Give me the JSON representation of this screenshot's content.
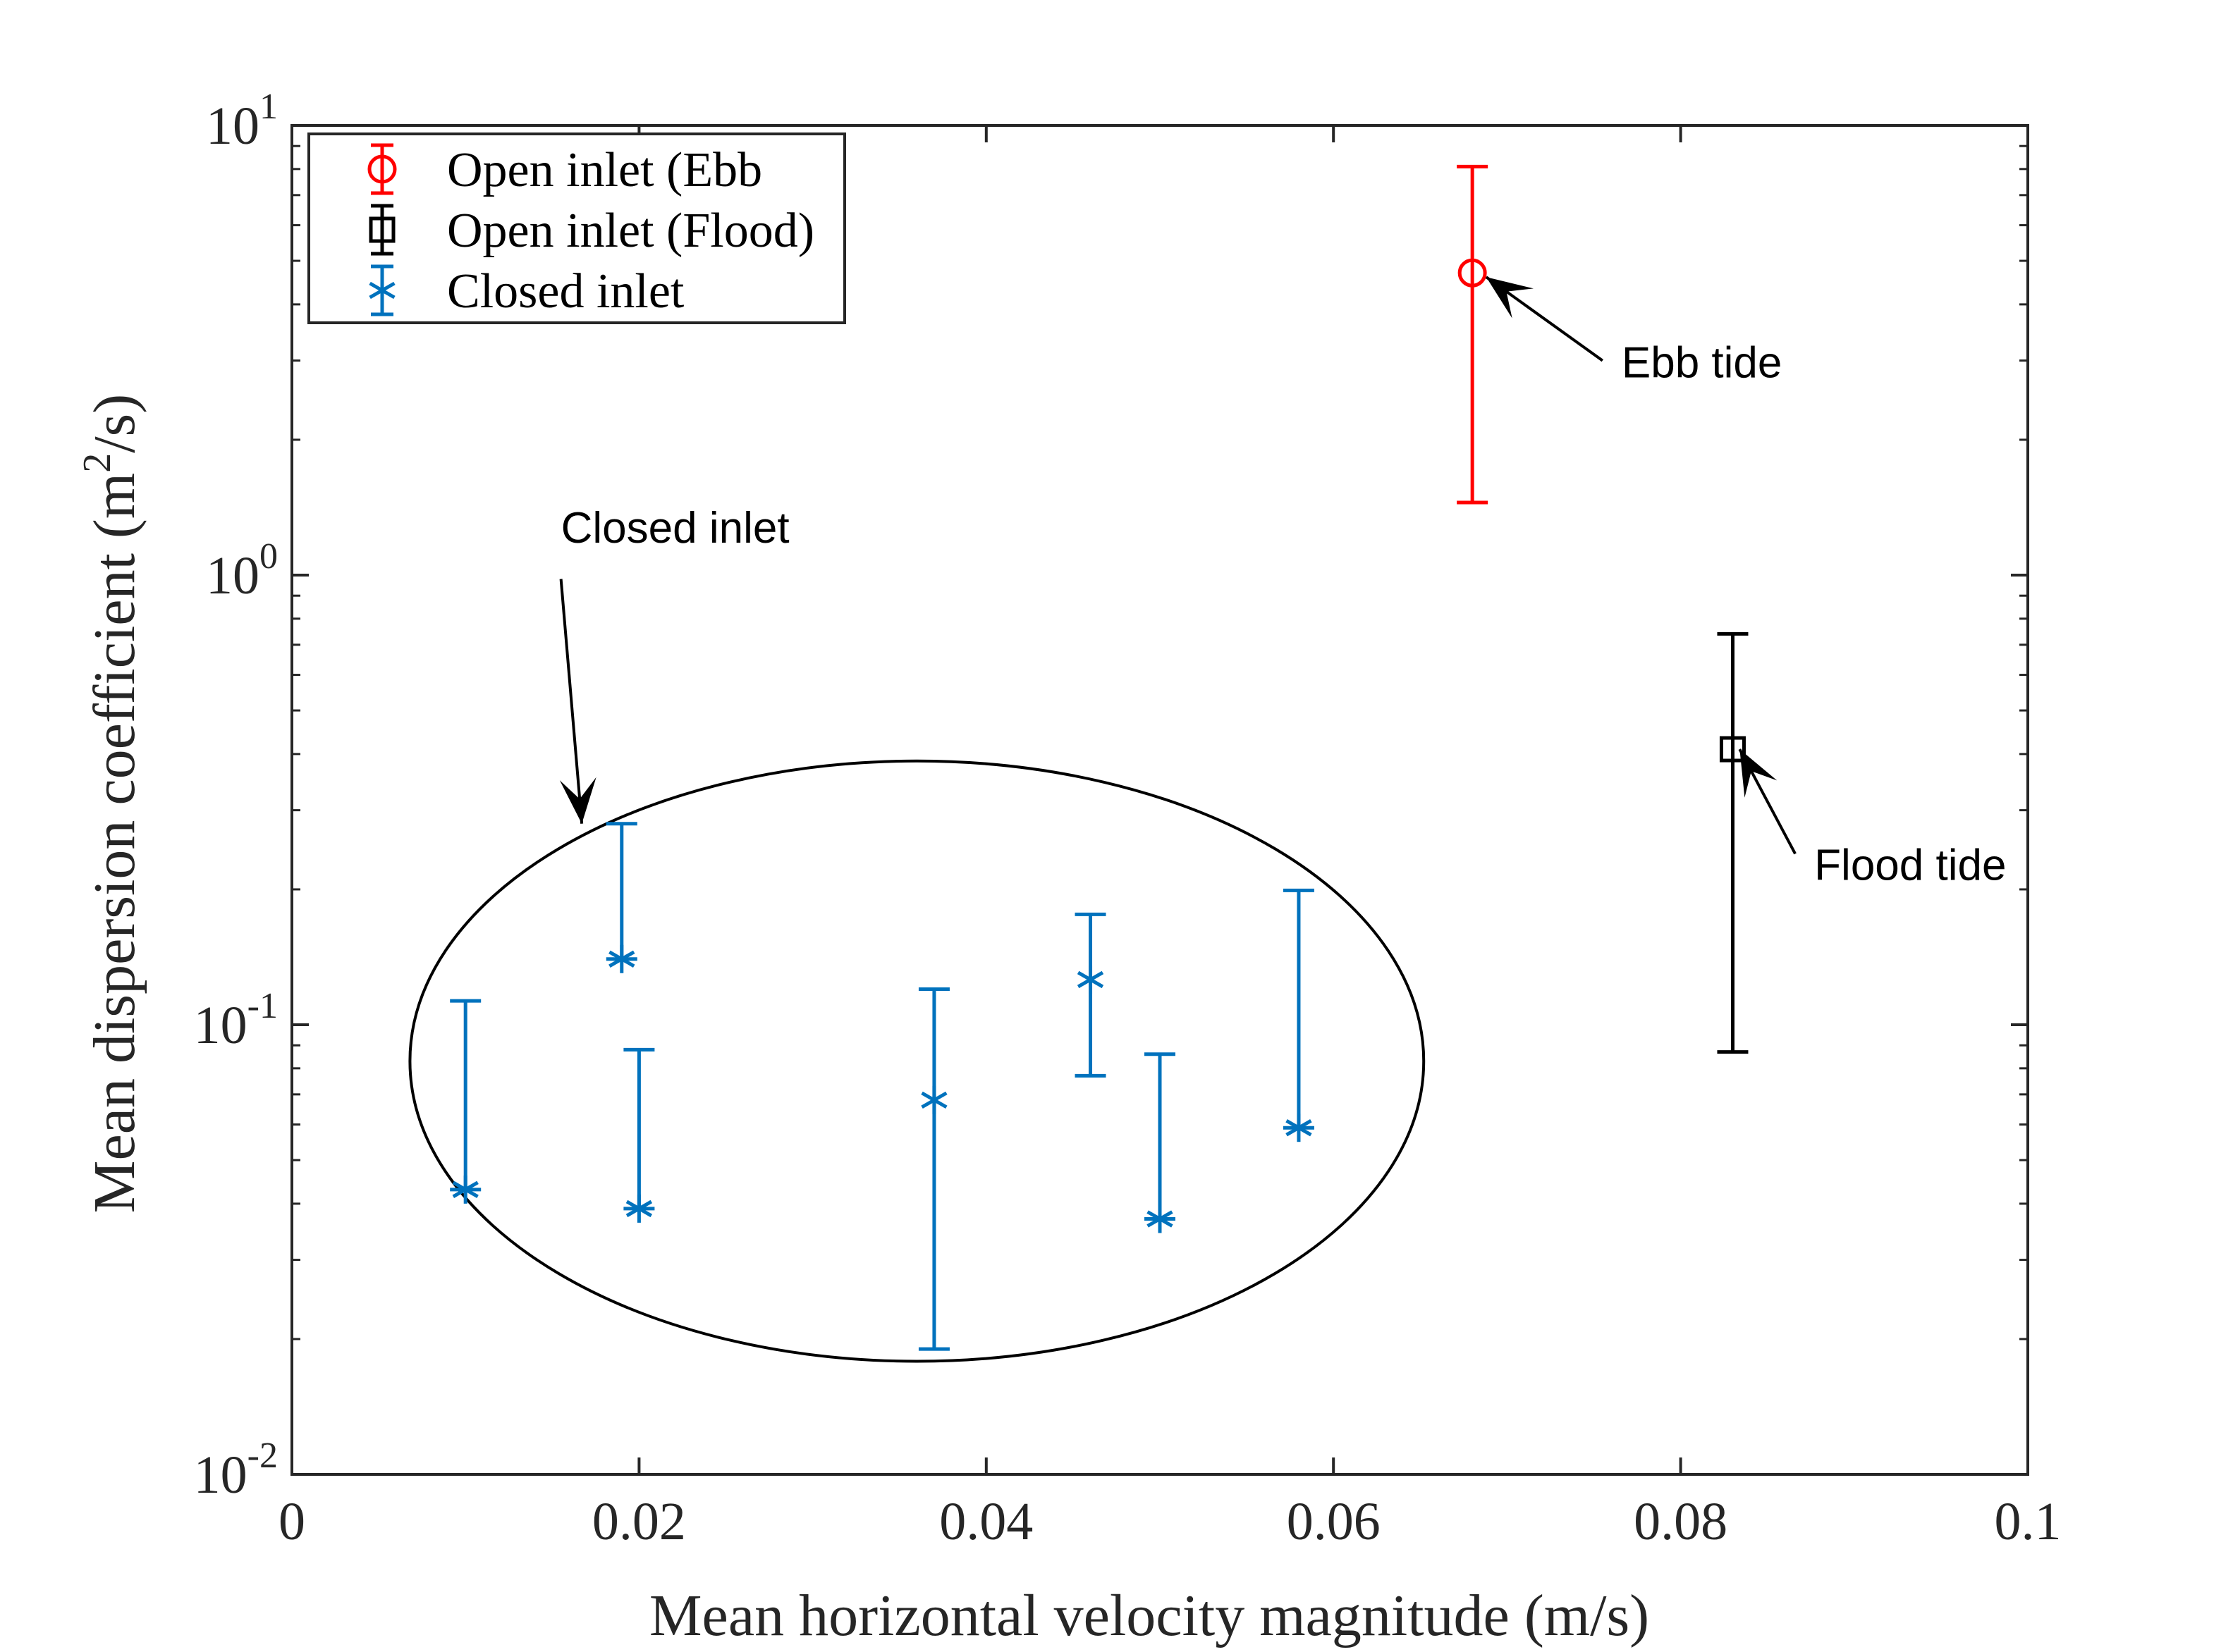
{
  "chart_data": {
    "type": "scatter",
    "title": "",
    "xlabel": "Mean horizontal velocity magnitude (m/s)",
    "ylabel": {
      "prefix": "Mean dispersion coefficient (m",
      "sup": "2",
      "suffix": "/s)"
    },
    "xlim": [
      0,
      0.1
    ],
    "ylim": [
      0.01,
      10
    ],
    "yscale": "log",
    "xticks": [
      "0",
      "0.02",
      "0.04",
      "0.06",
      "0.08",
      "0.1"
    ],
    "xtick_values": [
      0,
      0.02,
      0.04,
      0.06,
      0.08,
      0.1
    ],
    "yticks": [
      {
        "value": 0.01,
        "base": "10",
        "exp": "-2"
      },
      {
        "value": 0.1,
        "base": "10",
        "exp": "-1"
      },
      {
        "value": 1,
        "base": "10",
        "exp": "0"
      },
      {
        "value": 10,
        "base": "10",
        "exp": "1"
      }
    ],
    "legend_position": "top-left",
    "series": [
      {
        "name": "Open inlet (Ebb",
        "color": "#ff0000",
        "marker": "circle",
        "points": [
          {
            "x": 0.068,
            "y": 4.7,
            "ylow": 1.45,
            "yhigh": 8.1
          }
        ]
      },
      {
        "name": "Open inlet (Flood)",
        "color": "#000000",
        "marker": "square",
        "points": [
          {
            "x": 0.083,
            "y": 0.41,
            "ylow": 0.087,
            "yhigh": 0.74
          }
        ]
      },
      {
        "name": "Closed inlet",
        "color": "#0072bd",
        "marker": "asterisk",
        "points": [
          {
            "x": 0.01,
            "y": 0.043,
            "ylow": 0.043,
            "yhigh": 0.113
          },
          {
            "x": 0.019,
            "y": 0.14,
            "ylow": 0.14,
            "yhigh": 0.28
          },
          {
            "x": 0.02,
            "y": 0.039,
            "ylow": 0.039,
            "yhigh": 0.088
          },
          {
            "x": 0.037,
            "y": 0.068,
            "ylow": 0.019,
            "yhigh": 0.12
          },
          {
            "x": 0.046,
            "y": 0.126,
            "ylow": 0.077,
            "yhigh": 0.176
          },
          {
            "x": 0.05,
            "y": 0.037,
            "ylow": 0.037,
            "yhigh": 0.086
          },
          {
            "x": 0.058,
            "y": 0.059,
            "ylow": 0.059,
            "yhigh": 0.199
          }
        ]
      }
    ],
    "annotations": [
      {
        "text": "Ebb tide",
        "target": {
          "x": 0.0688,
          "y": 4.6
        },
        "label_anchor": {
          "x": 0.0766,
          "y": 2.75
        },
        "arrow_from": {
          "x": 0.0755,
          "y": 3.0
        }
      },
      {
        "text": "Flood tide",
        "target": {
          "x": 0.0834,
          "y": 0.41
        },
        "label_anchor": {
          "x": 0.0877,
          "y": 0.21
        },
        "arrow_from": {
          "x": 0.0866,
          "y": 0.24
        }
      },
      {
        "text": "Closed inlet",
        "target": {
          "x": 0.0167,
          "y": 0.28
        },
        "label_anchor": {
          "x": 0.0155,
          "y": 1.18
        },
        "arrow_from": {
          "x": 0.0155,
          "y": 0.98
        }
      }
    ],
    "grouping_ellipse": {
      "center_x": 0.036,
      "center_y": 0.083,
      "x_min": 0.0068,
      "x_max": 0.0652,
      "y_min": 0.0178,
      "y_max": 0.385
    }
  }
}
